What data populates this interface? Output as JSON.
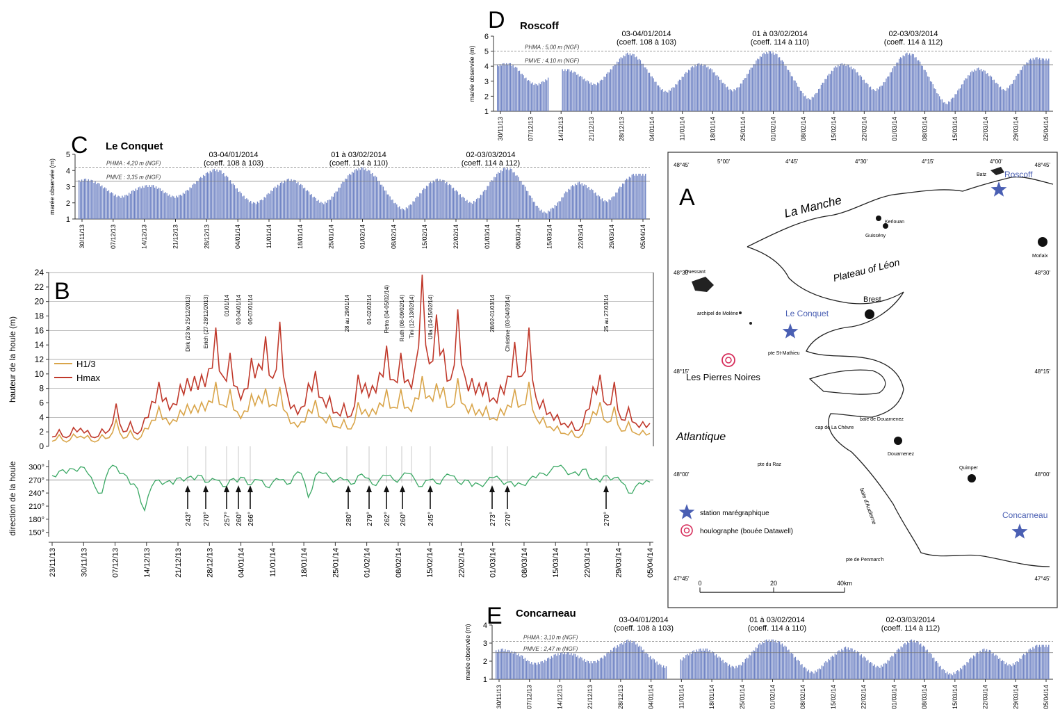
{
  "panels": {
    "D": {
      "letter": "D",
      "title": "Roscoff"
    },
    "C": {
      "letter": "C",
      "title": "Le Conquet"
    },
    "B": {
      "letter": "B"
    },
    "A": {
      "letter": "A"
    },
    "E": {
      "letter": "E",
      "title": "Concarneau"
    }
  },
  "tide_common": {
    "ylabel": "marée observée (m)",
    "x_ticks": [
      "30/11/13",
      "07/12/13",
      "14/12/13",
      "21/12/13",
      "28/12/13",
      "04/01/14",
      "11/01/14",
      "18/01/14",
      "25/01/14",
      "01/02/14",
      "08/02/14",
      "15/02/14",
      "22/02/14",
      "01/03/14",
      "08/03/14",
      "15/03/14",
      "22/03/14",
      "29/03/14",
      "05/04/14"
    ],
    "annotations": [
      {
        "date": "03-04/01/2014",
        "coef": "(coeff. 108 à 103)"
      },
      {
        "date": "01 à 03/02/2014",
        "coef": "(coeff. 114 à 110)"
      },
      {
        "date": "02-03/03/2014",
        "coef": "(coeff. 114 à 112)"
      }
    ]
  },
  "wave": {
    "ylabel_top": "hauteur de la houle (m)",
    "ylabel_bottom": "direction de la houle",
    "x_ticks": [
      "23/11/13",
      "30/11/13",
      "07/12/13",
      "14/12/13",
      "21/12/13",
      "28/12/13",
      "04/01/14",
      "11/01/14",
      "18/01/14",
      "25/01/14",
      "01/02/14",
      "08/02/14",
      "15/02/14",
      "22/02/14",
      "01/03/14",
      "08/03/14",
      "15/03/14",
      "22/03/14",
      "29/03/14",
      "05/04/14"
    ],
    "legend": [
      "H1/3",
      "Hmax"
    ],
    "storm_labels": [
      "Dirk (23 to 25/12/2013)",
      "Erich (27-28/12/2013)",
      "01/01/14",
      "03-04/01/14",
      "06-07/01/14",
      "28 au 29/01/14",
      "01-02/02/14",
      "Petra (04-05/02/14)",
      "Ruth (08-09/02/14)",
      "Tini (12-13/02/14)",
      "Ulla (14-15/02/14)",
      "28/02-01/03/14",
      "Christine (03-04/03/14)",
      "25 au 27/03/14"
    ],
    "arrow_labels": [
      "243°",
      "270°",
      "257°",
      "260°",
      "266°",
      "280°",
      "279°",
      "262°",
      "260°",
      "245°",
      "273°",
      "270°",
      "270°"
    ]
  },
  "map": {
    "labels": {
      "la_manche": "La Manche",
      "plateau": "Plateau of Léon",
      "atlantique": "Atlantique",
      "pierres_noires": "Les Pierres Noires",
      "le_conquet": "Le Conquet",
      "roscoff": "Roscoff",
      "concarneau": "Concarneau",
      "brest": "Brest",
      "douarnenez": "Douarnenez",
      "quimper": "Quimper",
      "morlaix": "Morlaix",
      "kerlouan": "Kerlouan",
      "guissény": "Guissény",
      "ouessant": "Ouessant",
      "molene": "archipel de Molène",
      "saint_mathieu": "pte St-Mathieu",
      "baie_douarnenez": "baie de Douarnenez",
      "crozon": "cap de La Chèvre",
      "raz": "pte du Raz",
      "penmarch": "pte de Penmarc'h",
      "audierne": "baie d'Audierne",
      "batz": "Batz"
    },
    "lon_ticks": [
      "5°00'",
      "4°45'",
      "4°30'",
      "4°15'",
      "4°00'"
    ],
    "lat_ticks": [
      "48°45'",
      "48°30'",
      "48°15'",
      "48°00'",
      "47°45'"
    ],
    "legend": [
      "station marégraphique",
      "houlographe (bouée Datawell)"
    ],
    "scale": [
      "0",
      "20",
      "40km"
    ]
  },
  "chart_data": [
    {
      "type": "bar",
      "id": "roscoff",
      "title": "Roscoff",
      "ylabel": "marée observée (m)",
      "ylim": [
        1,
        6
      ],
      "yticks": [
        1,
        2,
        3,
        4,
        5,
        6
      ],
      "ref_lines": [
        {
          "label": "PHMA : 5,00 m (NGF)",
          "value": 5.0
        },
        {
          "label": "PMVE : 4,10 m (NGF)",
          "value": 4.1
        }
      ],
      "gaps": [
        [
          8,
          9
        ]
      ],
      "peaks": [
        4.1,
        4.2,
        4.2,
        3.9,
        3.4,
        3.0,
        2.8,
        3.0,
        3.3,
        3.6,
        3.8,
        3.8,
        3.6,
        3.3,
        3.0,
        2.8,
        3.1,
        3.6,
        4.1,
        4.6,
        4.9,
        4.8,
        4.4,
        3.8,
        3.2,
        2.6,
        2.3,
        2.6,
        3.1,
        3.6,
        4.0,
        4.2,
        4.1,
        3.8,
        3.3,
        2.8,
        2.4,
        2.6,
        3.2,
        3.9,
        4.5,
        4.9,
        5.0,
        4.8,
        4.3,
        3.6,
        2.9,
        2.2,
        1.8,
        2.2,
        2.9,
        3.5,
        4.0,
        4.2,
        4.1,
        3.8,
        3.3,
        2.8,
        2.4,
        2.7,
        3.3,
        4.0,
        4.6,
        4.9,
        4.8,
        4.3,
        3.6,
        2.8,
        2.0,
        1.5,
        1.9,
        2.5,
        3.2,
        3.7,
        3.9,
        3.7,
        3.3,
        2.8,
        2.4,
        2.8,
        3.5,
        4.1,
        4.5,
        4.6,
        4.5
      ]
    },
    {
      "type": "bar",
      "id": "le_conquet",
      "title": "Le Conquet",
      "ylabel": "marée observée (m)",
      "ylim": [
        1,
        5
      ],
      "yticks": [
        1,
        2,
        3,
        4,
        5
      ],
      "ref_lines": [
        {
          "label": "PHMA : 4,20 m (NGF)",
          "value": 4.2
        },
        {
          "label": "PMVE : 3,35 m (NGF)",
          "value": 3.35
        }
      ],
      "gaps": [],
      "peaks": [
        3.4,
        3.5,
        3.4,
        3.2,
        2.9,
        2.6,
        2.4,
        2.5,
        2.8,
        3.0,
        3.1,
        3.1,
        2.9,
        2.6,
        2.4,
        2.5,
        2.8,
        3.2,
        3.6,
        3.9,
        4.1,
        4.0,
        3.6,
        3.1,
        2.6,
        2.2,
        2.0,
        2.2,
        2.6,
        3.0,
        3.3,
        3.5,
        3.4,
        3.1,
        2.7,
        2.3,
        2.0,
        2.2,
        2.7,
        3.3,
        3.8,
        4.1,
        4.2,
        4.0,
        3.6,
        3.0,
        2.4,
        1.9,
        1.6,
        1.9,
        2.4,
        2.9,
        3.3,
        3.5,
        3.4,
        3.1,
        2.7,
        2.3,
        2.0,
        2.3,
        2.8,
        3.4,
        3.9,
        4.2,
        4.1,
        3.6,
        3.0,
        2.3,
        1.7,
        1.4,
        1.7,
        2.1,
        2.7,
        3.1,
        3.3,
        3.1,
        2.8,
        2.4,
        2.1,
        2.4,
        3.0,
        3.5,
        3.8,
        3.8
      ]
    },
    {
      "type": "bar",
      "id": "concarneau",
      "title": "Concarneau",
      "ylabel": "marée observée (m)",
      "ylim": [
        1,
        4
      ],
      "yticks": [
        1,
        2,
        3,
        4
      ],
      "ref_lines": [
        {
          "label": "PHMA : 3,10 m (NGF)",
          "value": 3.1
        },
        {
          "label": "PMVE : 2,47 m (NGF)",
          "value": 2.47
        }
      ],
      "gaps": [
        [
          26,
          27
        ]
      ],
      "peaks": [
        2.6,
        2.7,
        2.6,
        2.5,
        2.3,
        2.0,
        1.9,
        2.0,
        2.2,
        2.4,
        2.5,
        2.5,
        2.4,
        2.2,
        2.0,
        2.0,
        2.2,
        2.5,
        2.8,
        3.0,
        3.2,
        3.1,
        2.8,
        2.4,
        2.1,
        1.8,
        1.7,
        1.8,
        2.1,
        2.4,
        2.6,
        2.7,
        2.7,
        2.5,
        2.2,
        1.9,
        1.7,
        1.8,
        2.2,
        2.6,
        3.0,
        3.2,
        3.2,
        3.1,
        2.8,
        2.4,
        2.0,
        1.6,
        1.4,
        1.6,
        2.0,
        2.3,
        2.6,
        2.8,
        2.7,
        2.5,
        2.2,
        1.9,
        1.7,
        1.9,
        2.3,
        2.7,
        3.0,
        3.2,
        3.1,
        2.8,
        2.4,
        1.9,
        1.5,
        1.3,
        1.5,
        1.8,
        2.2,
        2.5,
        2.7,
        2.6,
        2.3,
        2.0,
        1.8,
        2.0,
        2.4,
        2.7,
        2.9,
        2.9
      ]
    },
    {
      "type": "line",
      "id": "wave_height",
      "ylabel": "hauteur de la houle (m)",
      "ylim": [
        0,
        24
      ],
      "yticks": [
        0,
        2,
        4,
        6,
        8,
        10,
        12,
        14,
        16,
        18,
        20,
        22,
        24
      ],
      "x_start": "23/11/13",
      "x_end": "05/04/14",
      "series": [
        {
          "name": "Hmax",
          "color": "#c0392b",
          "values": [
            1.6,
            1.9,
            1.5,
            2.2,
            2.8,
            1.8,
            1.5,
            2.0,
            2.5,
            5.5,
            2.3,
            3.0,
            2.0,
            3.5,
            6.5,
            8.5,
            7.0,
            5.5,
            8.8,
            9.0,
            10.0,
            9.5,
            11.0,
            16.0,
            10.0,
            12.5,
            8.5,
            7.5,
            12.5,
            11.0,
            15.5,
            9.0,
            17.5,
            7.0,
            6.0,
            5.0,
            9.0,
            10.0,
            7.0,
            6.5,
            5.0,
            5.5,
            4.5,
            9.5,
            9.0,
            8.0,
            10.5,
            13.5,
            9.5,
            12.5,
            9.5,
            10.5,
            24.0,
            11.0,
            18.5,
            13.0,
            9.5,
            18.5,
            10.0,
            9.0,
            9.0,
            8.5,
            7.0,
            8.0,
            10.0,
            14.0,
            10.0,
            16.0,
            7.0,
            6.0,
            5.0,
            4.0,
            3.5,
            3.0,
            2.5,
            4.5,
            8.5,
            9.5,
            6.0,
            8.5,
            4.0,
            5.0,
            3.5,
            3.0,
            3.5
          ]
        },
        {
          "name": "H1/3",
          "color": "#d9a54a",
          "values": [
            1.0,
            1.2,
            0.9,
            1.3,
            1.7,
            1.1,
            0.9,
            1.2,
            1.5,
            3.3,
            1.4,
            1.8,
            1.2,
            2.1,
            3.9,
            5.1,
            4.2,
            3.3,
            5.3,
            5.4,
            6.0,
            5.7,
            6.6,
            8.5,
            6.0,
            7.5,
            5.1,
            4.5,
            7.5,
            6.6,
            8.3,
            5.4,
            8.5,
            4.2,
            3.6,
            3.0,
            5.4,
            6.0,
            4.2,
            3.9,
            3.0,
            3.3,
            2.7,
            5.7,
            5.4,
            4.8,
            6.3,
            7.5,
            5.7,
            7.5,
            5.7,
            6.3,
            10.0,
            6.6,
            9.0,
            7.8,
            5.7,
            9.0,
            6.0,
            5.4,
            5.4,
            5.1,
            4.2,
            4.8,
            6.0,
            7.5,
            6.0,
            8.5,
            4.2,
            3.6,
            3.0,
            2.4,
            2.1,
            1.8,
            1.5,
            2.7,
            5.1,
            5.7,
            3.6,
            5.1,
            2.4,
            3.0,
            2.1,
            1.8,
            2.1
          ]
        }
      ]
    },
    {
      "type": "line",
      "id": "wave_direction",
      "ylabel": "direction de la houle",
      "yticks": [
        "150°",
        "180°",
        "210°",
        "240°",
        "270°",
        "300°"
      ],
      "ylim": [
        140,
        315
      ],
      "ref_line": 270,
      "series": [
        {
          "name": "direction",
          "color": "#3aa864",
          "values": [
            280,
            290,
            285,
            295,
            300,
            285,
            255,
            240,
            295,
            300,
            285,
            260,
            250,
            200,
            255,
            270,
            265,
            260,
            275,
            275,
            270,
            280,
            265,
            270,
            255,
            270,
            265,
            275,
            260,
            270,
            255,
            265,
            270,
            260,
            280,
            285,
            230,
            280,
            285,
            275,
            270,
            270,
            260,
            280,
            275,
            260,
            270,
            280,
            270,
            275,
            285,
            270,
            255,
            270,
            262,
            275,
            280,
            265,
            270,
            255,
            260,
            265,
            275,
            270,
            265,
            255,
            260,
            270,
            275,
            285,
            290,
            300,
            295,
            285,
            280,
            295,
            270,
            265,
            280,
            275,
            265,
            240,
            255,
            260,
            265
          ]
        }
      ]
    }
  ]
}
